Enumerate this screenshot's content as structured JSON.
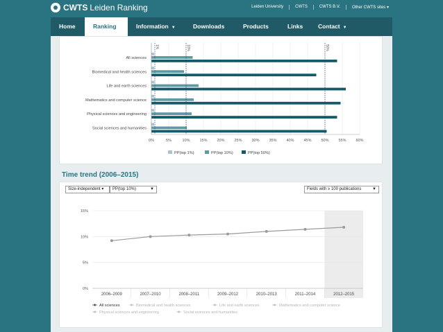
{
  "brand": {
    "logo_bold": "CWTS",
    "logo_text": "Leiden Ranking"
  },
  "toplinks": [
    "Leiden University",
    "CWTS",
    "CWTS B.V.",
    "Other CWTS sites ▾"
  ],
  "nav": [
    {
      "label": "Home",
      "caret": false
    },
    {
      "label": "Ranking",
      "caret": false,
      "active": true
    },
    {
      "label": "Information",
      "caret": true
    },
    {
      "label": "Downloads",
      "caret": false
    },
    {
      "label": "Products",
      "caret": false
    },
    {
      "label": "Links",
      "caret": false
    },
    {
      "label": "Contact",
      "caret": true
    }
  ],
  "bar_chart": {
    "type": "bar",
    "orientation": "horizontal",
    "categories": [
      "All sciences",
      "Biomedical and health sciences",
      "Life and earth sciences",
      "Mathematics and computer science",
      "Physical sciences and engineering",
      "Social sciences and humanities"
    ],
    "series": [
      {
        "name": "PP(top 1%)",
        "color": "#a9c3d2",
        "values": [
          0.8,
          0.8,
          0.8,
          0.8,
          0.8,
          0.8
        ]
      },
      {
        "name": "PP(top 10%)",
        "color": "#5d9aa6",
        "values": [
          11.9,
          9.4,
          13.6,
          12.2,
          11.6,
          10.2
        ]
      },
      {
        "name": "PP(top 50%)",
        "color": "#145a68",
        "values": [
          53.5,
          47.5,
          56.0,
          54.5,
          53.5,
          50.5
        ]
      }
    ],
    "xticks": [
      "0%",
      "5%",
      "10%",
      "15%",
      "20%",
      "25%",
      "30%",
      "35%",
      "40%",
      "45%",
      "50%",
      "55%",
      "60%"
    ],
    "xlim": [
      0,
      60
    ],
    "reference_lines": [
      {
        "value": 1,
        "label": "1%"
      },
      {
        "value": 10,
        "label": "10%"
      },
      {
        "value": 50,
        "label": "50%"
      }
    ]
  },
  "time_trend": {
    "title": "Time trend (2006–2015)",
    "select_size": "Size-independent ▾",
    "select_indicator": "PP(top 10%)",
    "select_fields": "Fields with ≥ 100 publications"
  },
  "chart_data": {
    "type": "line",
    "categories": [
      "2006–2009",
      "2007–2010",
      "2008–2011",
      "2009–2012",
      "2010–2013",
      "2011–2014",
      "2012–2015"
    ],
    "series": [
      {
        "name": "All sciences",
        "values": [
          9.2,
          10.0,
          10.3,
          10.5,
          11.0,
          11.4,
          11.8
        ]
      }
    ],
    "yticks": [
      "0%",
      "5%",
      "10%",
      "15%"
    ],
    "ylim": [
      0,
      15
    ],
    "highlight_category": "2012–2015",
    "legend": [
      "All sciences",
      "Biomedical and health sciences",
      "Life and earth sciences",
      "Mathematics and computer science",
      "Physical sciences and engineering",
      "Social sciences and humanities"
    ]
  }
}
